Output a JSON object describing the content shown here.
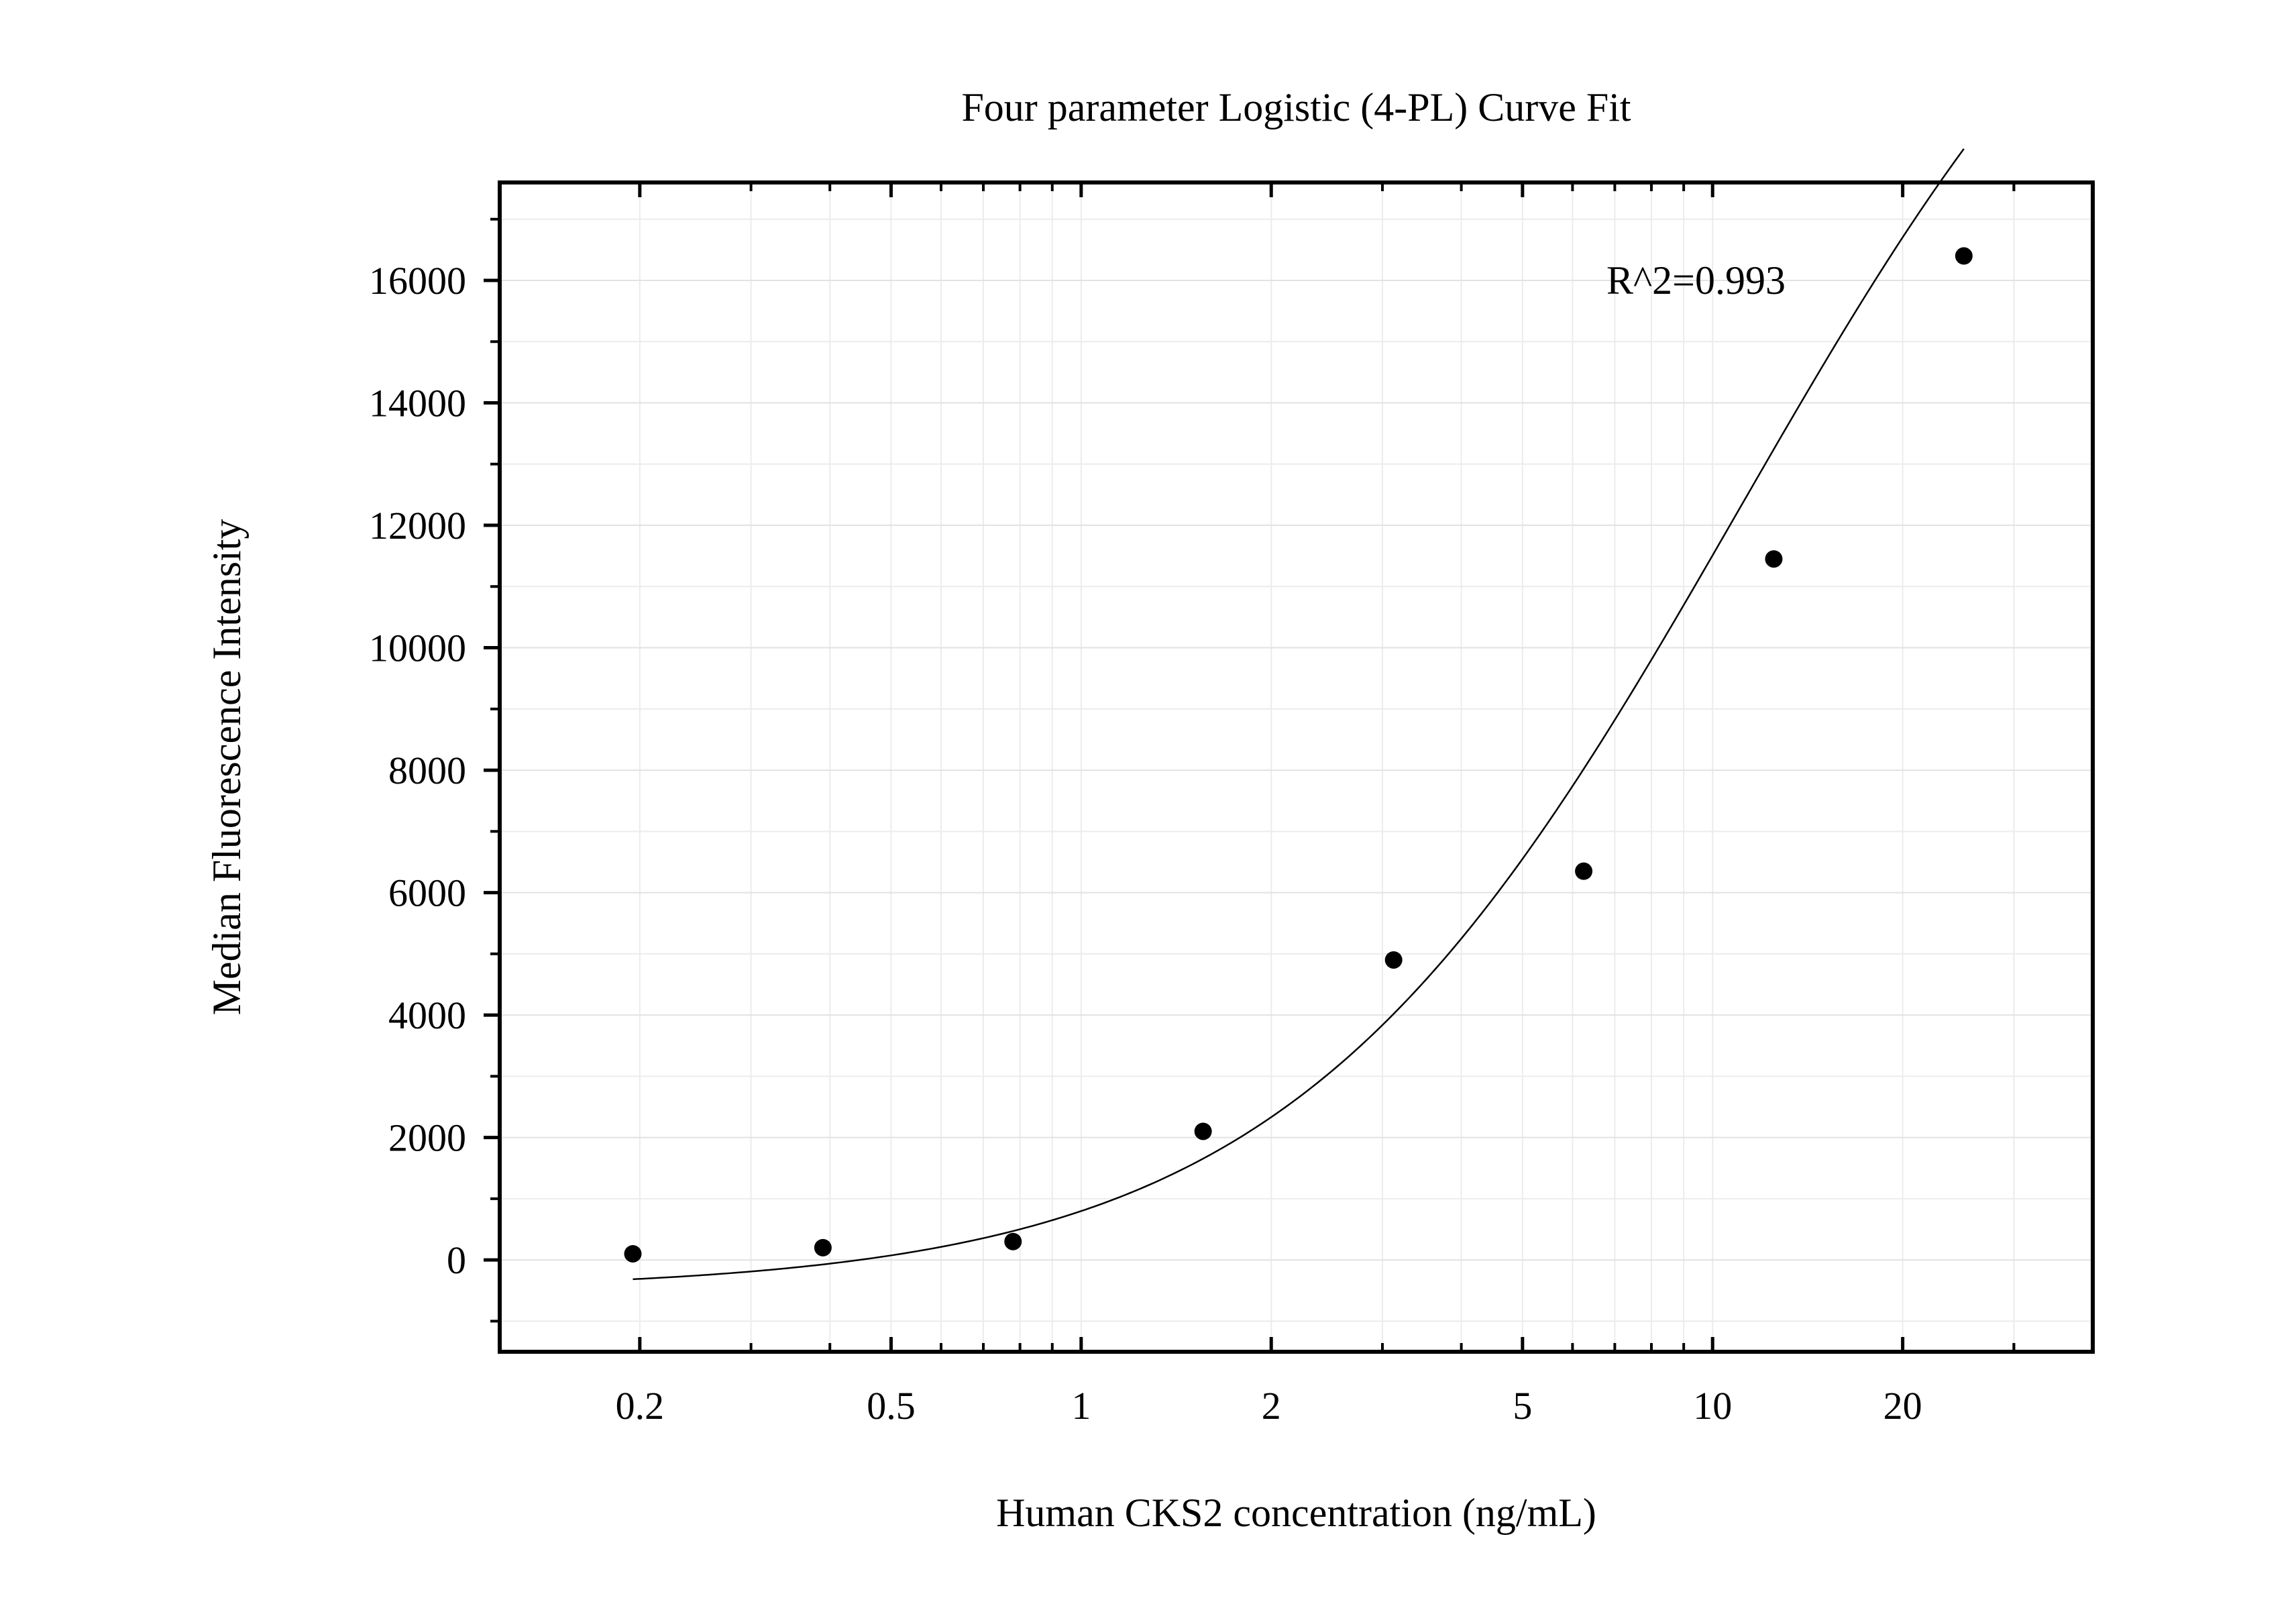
{
  "chart_data": {
    "type": "scatter",
    "title": "Four parameter Logistic (4-PL) Curve Fit",
    "xlabel": "Human CKS2 concentration (ng/mL)",
    "ylabel": "Median Fluorescence Intensity",
    "x_scale": "log",
    "xlim": [
      0.12,
      40
    ],
    "ylim": [
      -1500,
      17600
    ],
    "x_ticks": [
      0.2,
      0.5,
      1,
      2,
      5,
      10,
      20
    ],
    "x_tick_labels": [
      "0.2",
      "0.5",
      "1",
      "2",
      "5",
      "10",
      "20"
    ],
    "y_ticks": [
      0,
      2000,
      4000,
      6000,
      8000,
      10000,
      12000,
      14000,
      16000
    ],
    "y_tick_labels": [
      "0",
      "2000",
      "4000",
      "6000",
      "8000",
      "10000",
      "12000",
      "14000",
      "16000"
    ],
    "grid": true,
    "series": [
      {
        "type": "scatter",
        "x": [
          0.195,
          0.39,
          0.78,
          1.56,
          3.125,
          6.25,
          12.5,
          25
        ],
        "y": [
          100,
          200,
          300,
          2100,
          4900,
          6350,
          11450,
          16400
        ]
      },
      {
        "type": "line",
        "fit": "4PL",
        "x_range": [
          0.195,
          25
        ],
        "params": {
          "A": -500,
          "B": 1.22,
          "C": 11,
          "D": 25000
        }
      }
    ],
    "annotations": [
      {
        "text": "R^2=0.993"
      }
    ]
  }
}
